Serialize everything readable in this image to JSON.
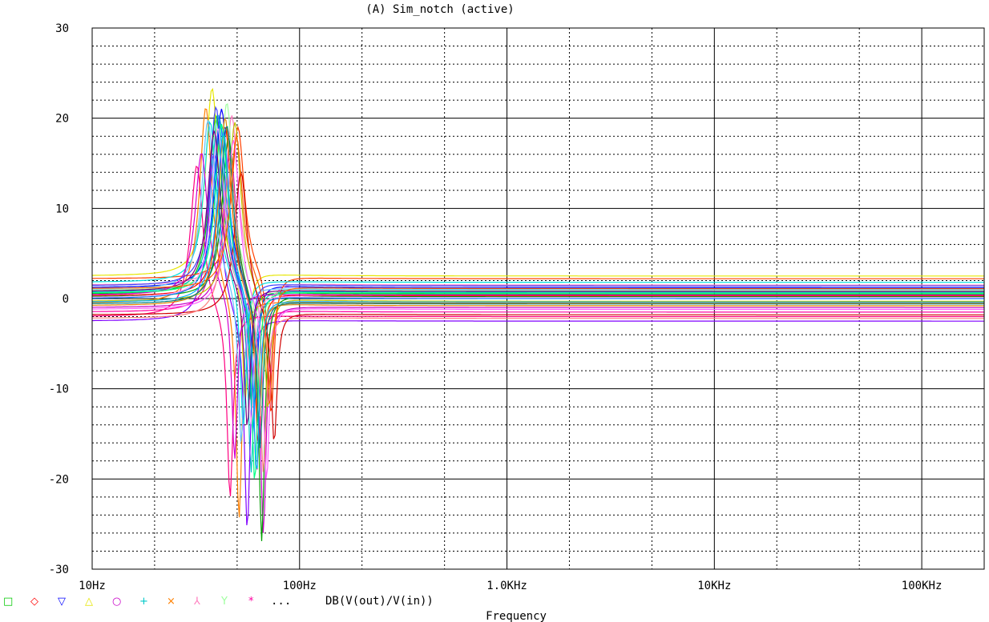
{
  "window": {
    "title": "(A) Sim_notch (active)"
  },
  "chart_data": {
    "type": "line",
    "title": "(A) Sim_notch (active)",
    "xlabel": "Frequency",
    "ylabel": "",
    "x_scale": "log",
    "xlim": [
      10,
      200000
    ],
    "ylim": [
      -30,
      30
    ],
    "x_ticks": [
      {
        "value": 10,
        "label": "10Hz"
      },
      {
        "value": 100,
        "label": "100Hz"
      },
      {
        "value": 1000,
        "label": "1.0KHz"
      },
      {
        "value": 10000,
        "label": "10KHz"
      },
      {
        "value": 100000,
        "label": "100KHz"
      }
    ],
    "y_ticks": [
      {
        "value": 30,
        "label": "30"
      },
      {
        "value": 20,
        "label": "20"
      },
      {
        "value": 10,
        "label": "10"
      },
      {
        "value": 0,
        "label": "0"
      },
      {
        "value": -10,
        "label": "-10"
      },
      {
        "value": -20,
        "label": "-20"
      },
      {
        "value": -30,
        "label": "-30"
      }
    ],
    "grid": true,
    "legend": {
      "placement": "bottom-left",
      "markers": [
        {
          "symbol": "□",
          "color": "#00c800"
        },
        {
          "symbol": "◇",
          "color": "#ff0000"
        },
        {
          "symbol": "▽",
          "color": "#0000ff"
        },
        {
          "symbol": "△",
          "color": "#e6e600"
        },
        {
          "symbol": "○",
          "color": "#c800c8"
        },
        {
          "symbol": "+",
          "color": "#00c8c8"
        },
        {
          "symbol": "×",
          "color": "#ff8000"
        },
        {
          "symbol": "⅄",
          "color": "#ff80c0"
        },
        {
          "symbol": "Y",
          "color": "#a0ffa0"
        },
        {
          "symbol": "*",
          "color": "#ff00a0"
        }
      ],
      "ellipsis": "...",
      "expression": "DB(V(out)/V(in))"
    },
    "series_note_count": 30,
    "series": [
      {
        "center": 47,
        "peak": 20,
        "trough": -13,
        "base_lo": 0.5,
        "base_hi": 0.5,
        "color": "#00c800"
      },
      {
        "center": 52,
        "peak": 19,
        "trough": -18,
        "base_lo": 0.3,
        "base_hi": 0.3,
        "color": "#ff0000"
      },
      {
        "center": 50,
        "peak": 20,
        "trough": -14,
        "base_lo": 1.2,
        "base_hi": 1.2,
        "color": "#0000ff"
      },
      {
        "center": 45,
        "peak": 21,
        "trough": -15,
        "base_lo": 2.5,
        "base_hi": 2.5,
        "color": "#e6e600"
      },
      {
        "center": 55,
        "peak": 18,
        "trough": -26,
        "base_lo": -1.0,
        "base_hi": -1.0,
        "color": "#c800c8"
      },
      {
        "center": 48,
        "peak": 20,
        "trough": -21,
        "base_lo": 0.7,
        "base_hi": 0.7,
        "color": "#00c8c8"
      },
      {
        "center": 42,
        "peak": 22,
        "trough": -25,
        "base_lo": -0.5,
        "base_hi": -0.5,
        "color": "#ff8000"
      },
      {
        "center": 56,
        "peak": 19,
        "trough": -17,
        "base_lo": 1.5,
        "base_hi": 1.5,
        "color": "#ff80c0"
      },
      {
        "center": 53,
        "peak": 21,
        "trough": -15,
        "base_lo": 0.9,
        "base_hi": 0.9,
        "color": "#a0ffa0"
      },
      {
        "center": 51,
        "peak": 20,
        "trough": -19,
        "base_lo": -1.5,
        "base_hi": -1.5,
        "color": "#ff00a0"
      },
      {
        "center": 38,
        "peak": 17,
        "trough": -21,
        "base_lo": -2.0,
        "base_hi": -2.0,
        "color": "#ff0080"
      },
      {
        "center": 60,
        "peak": 17,
        "trough": -16,
        "base_lo": 2.2,
        "base_hi": 2.2,
        "color": "#ff4000"
      },
      {
        "center": 46,
        "peak": 19,
        "trough": -24,
        "base_lo": -2.5,
        "base_hi": -2.5,
        "color": "#8000ff"
      },
      {
        "center": 54,
        "peak": 18,
        "trough": -28,
        "base_lo": 0.2,
        "base_hi": 0.2,
        "color": "#00a000"
      },
      {
        "center": 44,
        "peak": 18,
        "trough": -17,
        "base_lo": 1.8,
        "base_hi": 1.8,
        "color": "#00e0e0"
      },
      {
        "center": 58,
        "peak": 20,
        "trough": -13,
        "base_lo": -0.3,
        "base_hi": -0.3,
        "color": "#c0c000"
      },
      {
        "center": 49,
        "peak": 20,
        "trough": -16,
        "base_lo": 0.0,
        "base_hi": 0.0,
        "color": "#0080ff"
      },
      {
        "center": 57,
        "peak": 19,
        "trough": -20,
        "base_lo": -1.2,
        "base_hi": -1.2,
        "color": "#ff60ff"
      },
      {
        "center": 43,
        "peak": 19,
        "trough": -18,
        "base_lo": 1.0,
        "base_hi": 1.0,
        "color": "#60c0ff"
      },
      {
        "center": 52,
        "peak": 21,
        "trough": -14,
        "base_lo": -0.8,
        "base_hi": -0.8,
        "color": "#e08000"
      },
      {
        "center": 40,
        "peak": 16,
        "trough": -19,
        "base_lo": 0.4,
        "base_hi": 0.4,
        "color": "#d000d0"
      },
      {
        "center": 62,
        "peak": 16,
        "trough": -15,
        "base_lo": -1.8,
        "base_hi": -1.8,
        "color": "#d00000"
      },
      {
        "center": 50,
        "peak": 19,
        "trough": -22,
        "base_lo": 0.6,
        "base_hi": 0.6,
        "color": "#00ff80"
      },
      {
        "center": 47,
        "peak": 20,
        "trough": -12,
        "base_lo": 1.4,
        "base_hi": 1.4,
        "color": "#4040ff"
      },
      {
        "center": 55,
        "peak": 18,
        "trough": -18,
        "base_lo": -2.2,
        "base_hi": -2.2,
        "color": "#ff8080"
      },
      {
        "center": 48,
        "peak": 19,
        "trough": -15,
        "base_lo": 0.1,
        "base_hi": 0.1,
        "color": "#ffa0ff"
      },
      {
        "center": 53,
        "peak": 20,
        "trough": -17,
        "base_lo": -0.6,
        "base_hi": -0.6,
        "color": "#008080"
      },
      {
        "center": 46,
        "peak": 18,
        "trough": -16,
        "base_lo": 0.8,
        "base_hi": 0.8,
        "color": "#800080"
      },
      {
        "center": 59,
        "peak": 17,
        "trough": -14,
        "base_lo": 1.1,
        "base_hi": 1.1,
        "color": "#ff6000"
      },
      {
        "center": 51,
        "peak": 19,
        "trough": -20,
        "base_lo": -0.4,
        "base_hi": -0.4,
        "color": "#00b0ff"
      }
    ]
  }
}
